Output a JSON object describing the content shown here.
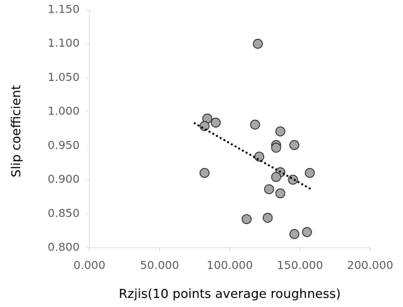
{
  "chart_data": {
    "type": "scatter",
    "x_label": "Rzjis(10 points average roughness)",
    "y_label": "Slip coefficient",
    "x": [
      84,
      82,
      90,
      82,
      118,
      120,
      121,
      133,
      133,
      136,
      146,
      136,
      133,
      145,
      157,
      128,
      136,
      112,
      127,
      146,
      155
    ],
    "values": [
      0.99,
      0.979,
      0.984,
      0.91,
      0.981,
      1.1,
      0.934,
      0.951,
      0.947,
      0.971,
      0.951,
      0.911,
      0.904,
      0.9,
      0.91,
      0.886,
      0.88,
      0.842,
      0.844,
      0.82,
      0.823
    ],
    "color": "#a6a6a6",
    "trendline": {
      "x": [
        75,
        157
      ],
      "y": [
        0.983,
        0.887
      ],
      "color": "#000000"
    },
    "xlim": [
      0,
      200
    ],
    "ylim": [
      0.8,
      1.15
    ],
    "xticks": [
      {
        "value": 0,
        "label": "0.000"
      },
      {
        "value": 50,
        "label": "50.000"
      },
      {
        "value": 100,
        "label": "100.000"
      },
      {
        "value": 150,
        "label": "150.000"
      },
      {
        "value": 200,
        "label": "200.000"
      }
    ],
    "yticks": [
      {
        "value": 0.8,
        "label": "0.800"
      },
      {
        "value": 0.85,
        "label": "0.850"
      },
      {
        "value": 0.9,
        "label": "0.900"
      },
      {
        "value": 0.95,
        "label": "0.950"
      },
      {
        "value": 1.0,
        "label": "1.000"
      },
      {
        "value": 1.05,
        "label": "1.050"
      },
      {
        "value": 1.1,
        "label": "1.100"
      },
      {
        "value": 1.15,
        "label": "1.150"
      }
    ],
    "grid": false
  }
}
